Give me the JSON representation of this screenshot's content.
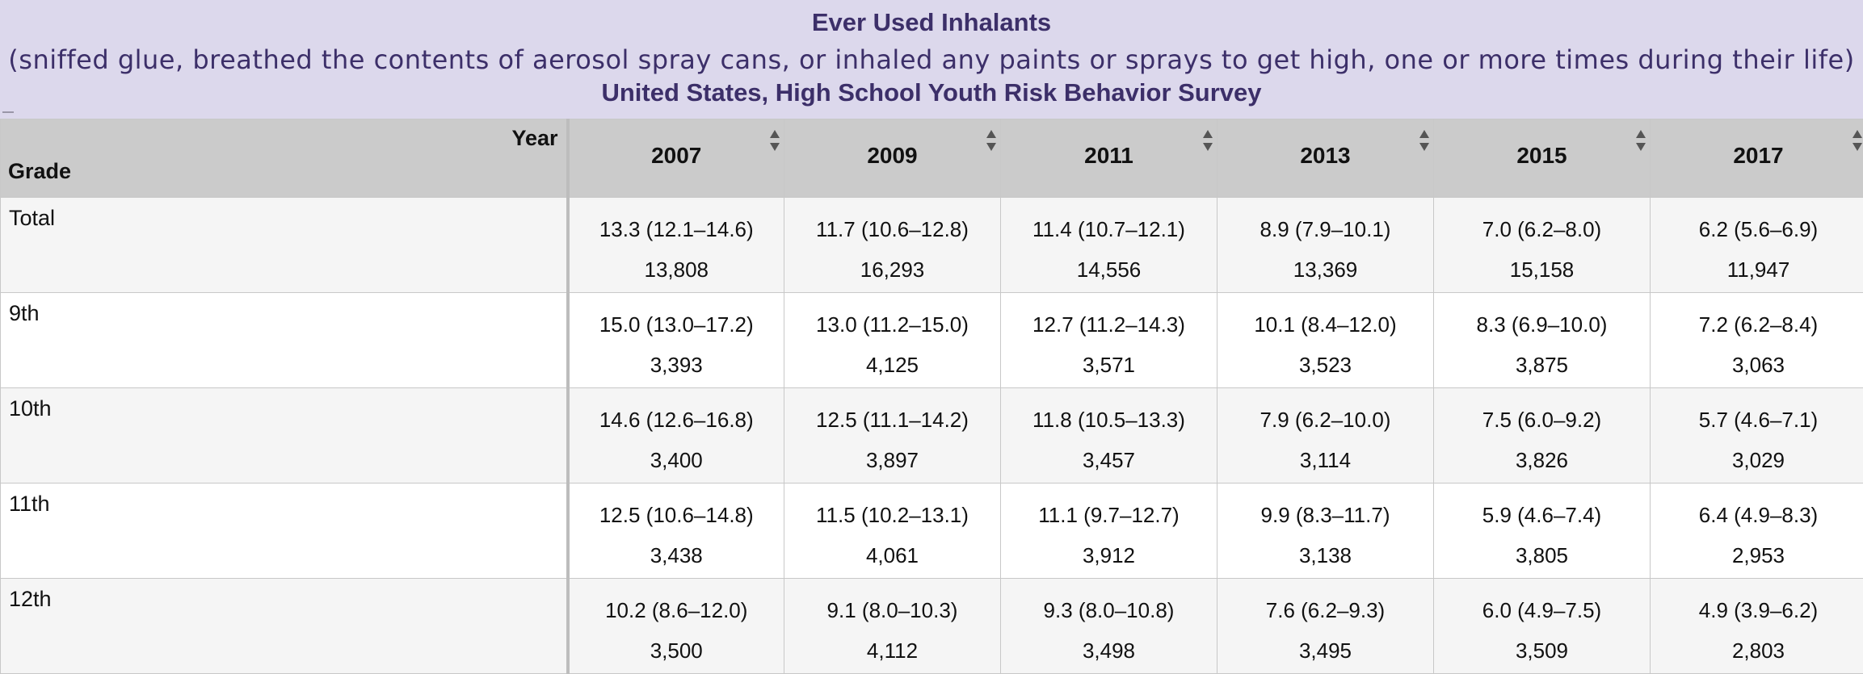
{
  "header": {
    "title": "Ever Used Inhalants",
    "subtitle": "(sniffed glue, breathed the contents of aerosol spray cans, or inhaled any paints or sprays to get high, one or more times during their life)",
    "survey": "United States, High School Youth Risk Behavior Survey"
  },
  "table": {
    "corner_year_label": "Year",
    "corner_grade_label": "Grade",
    "years": [
      "2007",
      "2009",
      "2011",
      "2013",
      "2015",
      "2017"
    ],
    "rows": [
      {
        "grade": "Total",
        "cells": [
          {
            "ci": "13.3 (12.1–14.6)",
            "n": "13,808"
          },
          {
            "ci": "11.7 (10.6–12.8)",
            "n": "16,293"
          },
          {
            "ci": "11.4 (10.7–12.1)",
            "n": "14,556"
          },
          {
            "ci": "8.9 (7.9–10.1)",
            "n": "13,369"
          },
          {
            "ci": "7.0 (6.2–8.0)",
            "n": "15,158"
          },
          {
            "ci": "6.2 (5.6–6.9)",
            "n": "11,947"
          }
        ]
      },
      {
        "grade": "9th",
        "cells": [
          {
            "ci": "15.0 (13.0–17.2)",
            "n": "3,393"
          },
          {
            "ci": "13.0 (11.2–15.0)",
            "n": "4,125"
          },
          {
            "ci": "12.7 (11.2–14.3)",
            "n": "3,571"
          },
          {
            "ci": "10.1 (8.4–12.0)",
            "n": "3,523"
          },
          {
            "ci": "8.3 (6.9–10.0)",
            "n": "3,875"
          },
          {
            "ci": "7.2 (6.2–8.4)",
            "n": "3,063"
          }
        ]
      },
      {
        "grade": "10th",
        "cells": [
          {
            "ci": "14.6 (12.6–16.8)",
            "n": "3,400"
          },
          {
            "ci": "12.5 (11.1–14.2)",
            "n": "3,897"
          },
          {
            "ci": "11.8 (10.5–13.3)",
            "n": "3,457"
          },
          {
            "ci": "7.9 (6.2–10.0)",
            "n": "3,114"
          },
          {
            "ci": "7.5 (6.0–9.2)",
            "n": "3,826"
          },
          {
            "ci": "5.7 (4.6–7.1)",
            "n": "3,029"
          }
        ]
      },
      {
        "grade": "11th",
        "cells": [
          {
            "ci": "12.5 (10.6–14.8)",
            "n": "3,438"
          },
          {
            "ci": "11.5 (10.2–13.1)",
            "n": "4,061"
          },
          {
            "ci": "11.1 (9.7–12.7)",
            "n": "3,912"
          },
          {
            "ci": "9.9 (8.3–11.7)",
            "n": "3,138"
          },
          {
            "ci": "5.9 (4.6–7.4)",
            "n": "3,805"
          },
          {
            "ci": "6.4 (4.9–8.3)",
            "n": "2,953"
          }
        ]
      },
      {
        "grade": "12th",
        "cells": [
          {
            "ci": "10.2 (8.6–12.0)",
            "n": "3,500"
          },
          {
            "ci": "9.1 (8.0–10.3)",
            "n": "4,112"
          },
          {
            "ci": "9.3 (8.0–10.8)",
            "n": "3,498"
          },
          {
            "ci": "7.6 (6.2–9.3)",
            "n": "3,495"
          },
          {
            "ci": "6.0 (4.9–7.5)",
            "n": "3,509"
          },
          {
            "ci": "4.9 (3.9–6.2)",
            "n": "2,803"
          }
        ]
      }
    ]
  },
  "icons": {
    "sort": "sort-icon"
  },
  "colors": {
    "header_bg": "#dcd8ec",
    "header_text": "#3c2f69",
    "table_header_bg": "#cbcbcb",
    "row_shaded_bg": "#f5f5f5"
  }
}
